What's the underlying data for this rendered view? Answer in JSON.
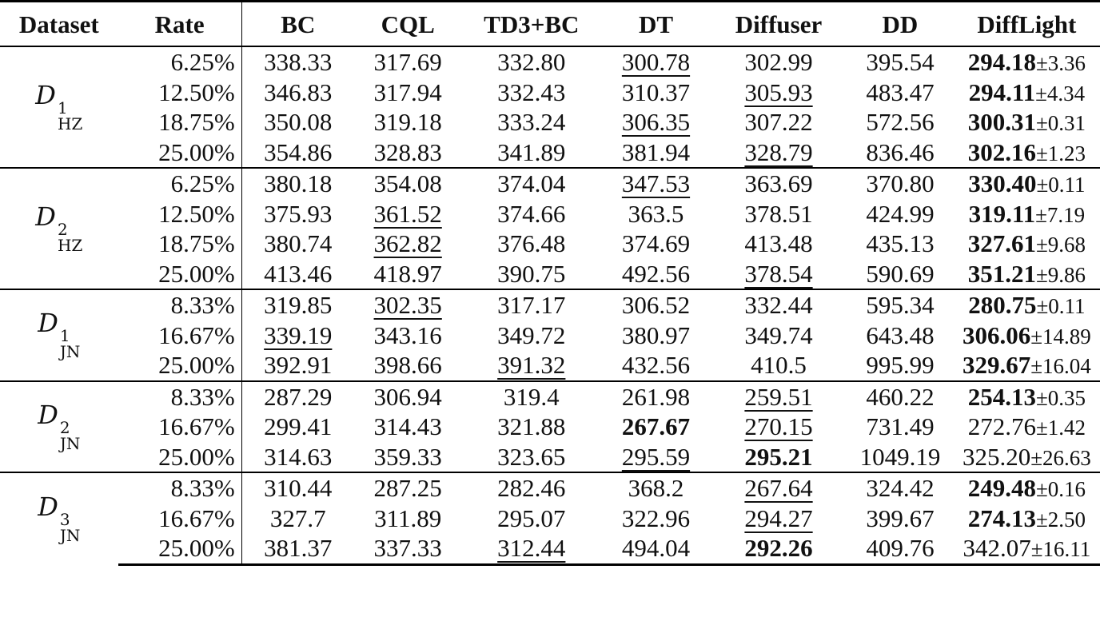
{
  "table": {
    "headers": [
      "Dataset",
      "Rate",
      "BC",
      "CQL",
      "TD3+BC",
      "DT",
      "Diffuser",
      "DD",
      "DiffLight"
    ],
    "groups": [
      {
        "dataset": {
          "symbol": "D",
          "superscript": "1",
          "subscript": "HZ"
        },
        "rows": [
          {
            "rate": "6.25%",
            "cells": [
              {
                "v": "338.33"
              },
              {
                "v": "317.69"
              },
              {
                "v": "332.80"
              },
              {
                "v": "300.78",
                "u": true
              },
              {
                "v": "302.99"
              },
              {
                "v": "395.54"
              },
              {
                "v": "294.18",
                "pm": "±3.36",
                "b": true
              }
            ]
          },
          {
            "rate": "12.50%",
            "cells": [
              {
                "v": "346.83"
              },
              {
                "v": "317.94"
              },
              {
                "v": "332.43"
              },
              {
                "v": "310.37"
              },
              {
                "v": "305.93",
                "u": true
              },
              {
                "v": "483.47"
              },
              {
                "v": "294.11",
                "pm": "±4.34",
                "b": true
              }
            ]
          },
          {
            "rate": "18.75%",
            "cells": [
              {
                "v": "350.08"
              },
              {
                "v": "319.18"
              },
              {
                "v": "333.24"
              },
              {
                "v": "306.35",
                "u": true
              },
              {
                "v": "307.22"
              },
              {
                "v": "572.56"
              },
              {
                "v": "300.31",
                "pm": "±0.31",
                "b": true
              }
            ]
          },
          {
            "rate": "25.00%",
            "cells": [
              {
                "v": "354.86"
              },
              {
                "v": "328.83"
              },
              {
                "v": "341.89"
              },
              {
                "v": "381.94"
              },
              {
                "v": "328.79",
                "u": true
              },
              {
                "v": "836.46"
              },
              {
                "v": "302.16",
                "pm": "±1.23",
                "b": true
              }
            ]
          }
        ]
      },
      {
        "dataset": {
          "symbol": "D",
          "superscript": "2",
          "subscript": "HZ"
        },
        "rows": [
          {
            "rate": "6.25%",
            "cells": [
              {
                "v": "380.18"
              },
              {
                "v": "354.08"
              },
              {
                "v": "374.04"
              },
              {
                "v": "347.53",
                "u": true
              },
              {
                "v": "363.69"
              },
              {
                "v": "370.80"
              },
              {
                "v": "330.40",
                "pm": "±0.11",
                "b": true
              }
            ]
          },
          {
            "rate": "12.50%",
            "cells": [
              {
                "v": "375.93"
              },
              {
                "v": "361.52",
                "u": true
              },
              {
                "v": "374.66"
              },
              {
                "v": "363.5"
              },
              {
                "v": "378.51"
              },
              {
                "v": "424.99"
              },
              {
                "v": "319.11",
                "pm": "±7.19",
                "b": true
              }
            ]
          },
          {
            "rate": "18.75%",
            "cells": [
              {
                "v": "380.74"
              },
              {
                "v": "362.82",
                "u": true
              },
              {
                "v": "376.48"
              },
              {
                "v": "374.69"
              },
              {
                "v": "413.48"
              },
              {
                "v": "435.13"
              },
              {
                "v": "327.61",
                "pm": "±9.68",
                "b": true
              }
            ]
          },
          {
            "rate": "25.00%",
            "cells": [
              {
                "v": "413.46"
              },
              {
                "v": "418.97"
              },
              {
                "v": "390.75"
              },
              {
                "v": "492.56"
              },
              {
                "v": "378.54",
                "u": true
              },
              {
                "v": "590.69"
              },
              {
                "v": "351.21",
                "pm": "±9.86",
                "b": true
              }
            ]
          }
        ]
      },
      {
        "dataset": {
          "symbol": "D",
          "superscript": "1",
          "subscript": "JN"
        },
        "rows": [
          {
            "rate": "8.33%",
            "cells": [
              {
                "v": "319.85"
              },
              {
                "v": "302.35",
                "u": true
              },
              {
                "v": "317.17"
              },
              {
                "v": "306.52"
              },
              {
                "v": "332.44"
              },
              {
                "v": "595.34"
              },
              {
                "v": "280.75",
                "pm": "±0.11",
                "b": true
              }
            ]
          },
          {
            "rate": "16.67%",
            "cells": [
              {
                "v": "339.19",
                "u": true
              },
              {
                "v": "343.16"
              },
              {
                "v": "349.72"
              },
              {
                "v": "380.97"
              },
              {
                "v": "349.74"
              },
              {
                "v": "643.48"
              },
              {
                "v": "306.06",
                "pm": "±14.89",
                "b": true
              }
            ]
          },
          {
            "rate": "25.00%",
            "cells": [
              {
                "v": "392.91"
              },
              {
                "v": "398.66"
              },
              {
                "v": "391.32",
                "u": true
              },
              {
                "v": "432.56"
              },
              {
                "v": "410.5"
              },
              {
                "v": "995.99"
              },
              {
                "v": "329.67",
                "pm": "±16.04",
                "b": true
              }
            ]
          }
        ]
      },
      {
        "dataset": {
          "symbol": "D",
          "superscript": "2",
          "subscript": "JN"
        },
        "rows": [
          {
            "rate": "8.33%",
            "cells": [
              {
                "v": "287.29"
              },
              {
                "v": "306.94"
              },
              {
                "v": "319.4"
              },
              {
                "v": "261.98"
              },
              {
                "v": "259.51",
                "u": true
              },
              {
                "v": "460.22"
              },
              {
                "v": "254.13",
                "pm": "±0.35",
                "b": true
              }
            ]
          },
          {
            "rate": "16.67%",
            "cells": [
              {
                "v": "299.41"
              },
              {
                "v": "314.43"
              },
              {
                "v": "321.88"
              },
              {
                "v": "267.67",
                "b": true
              },
              {
                "v": "270.15",
                "u": true
              },
              {
                "v": "731.49"
              },
              {
                "v": "272.76",
                "pm": "±1.42"
              }
            ]
          },
          {
            "rate": "25.00%",
            "cells": [
              {
                "v": "314.63"
              },
              {
                "v": "359.33"
              },
              {
                "v": "323.65"
              },
              {
                "v": "295.59",
                "u": true
              },
              {
                "v": "295.21",
                "b": true
              },
              {
                "v": "1049.19"
              },
              {
                "v": "325.20",
                "pm": "±26.63"
              }
            ]
          }
        ]
      },
      {
        "dataset": {
          "symbol": "D",
          "superscript": "3",
          "subscript": "JN"
        },
        "rows": [
          {
            "rate": "8.33%",
            "cells": [
              {
                "v": "310.44"
              },
              {
                "v": "287.25"
              },
              {
                "v": "282.46"
              },
              {
                "v": "368.2"
              },
              {
                "v": "267.64",
                "u": true
              },
              {
                "v": "324.42"
              },
              {
                "v": "249.48",
                "pm": "±0.16",
                "b": true
              }
            ]
          },
          {
            "rate": "16.67%",
            "cells": [
              {
                "v": "327.7"
              },
              {
                "v": "311.89"
              },
              {
                "v": "295.07"
              },
              {
                "v": "322.96"
              },
              {
                "v": "294.27",
                "u": true
              },
              {
                "v": "399.67"
              },
              {
                "v": "274.13",
                "pm": "±2.50",
                "b": true
              }
            ]
          },
          {
            "rate": "25.00%",
            "cells": [
              {
                "v": "381.37"
              },
              {
                "v": "337.33"
              },
              {
                "v": "312.44",
                "u": true
              },
              {
                "v": "494.04"
              },
              {
                "v": "292.26",
                "b": true
              },
              {
                "v": "409.76"
              },
              {
                "v": "342.07",
                "pm": "±16.11"
              }
            ]
          }
        ]
      }
    ]
  }
}
